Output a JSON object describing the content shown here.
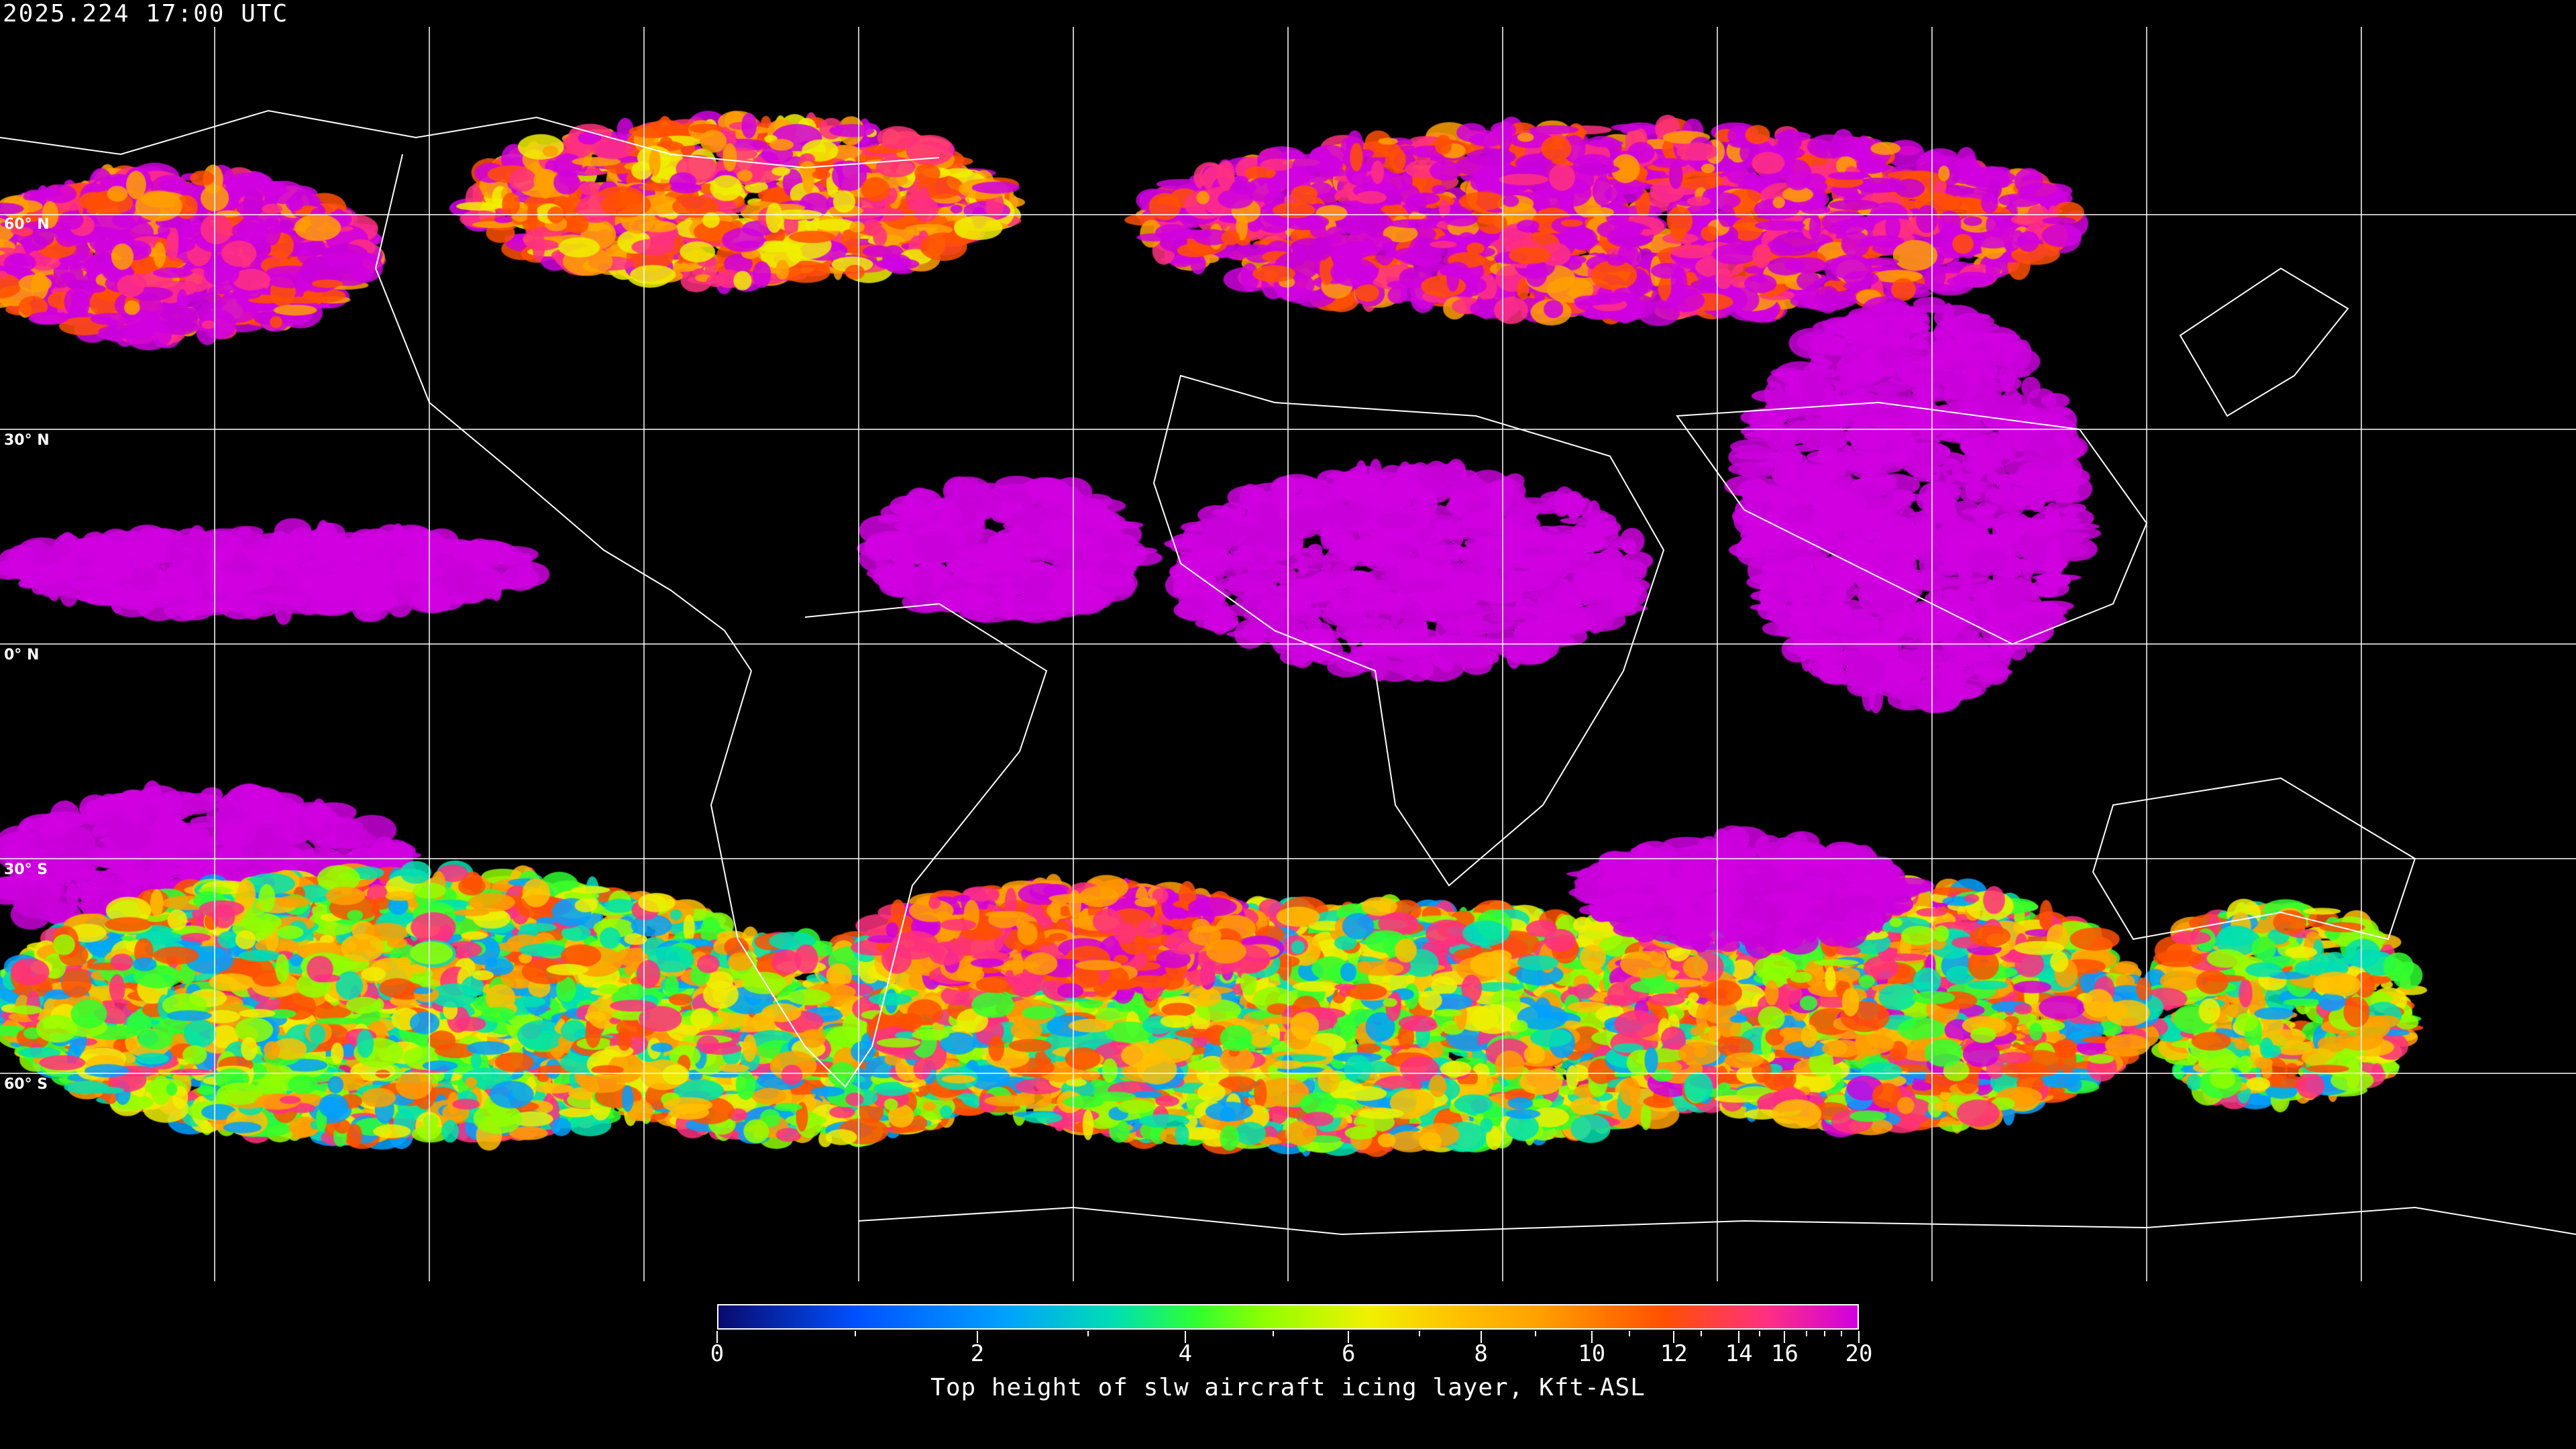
{
  "header": {
    "timestamp": "2025.224 17:00 UTC"
  },
  "map": {
    "projection": "equirectangular",
    "graticule_spacing_deg": 30,
    "latitude_labels": [
      "60° N",
      "30° N",
      "0° N",
      "30° S",
      "60° S"
    ],
    "background_color": "#000000",
    "coastline_color": "#ffffff",
    "gridline_color": "#ffffff"
  },
  "colorbar": {
    "title": "Top height of slw aircraft icing layer, Kft-ASL",
    "range": [
      0,
      20
    ],
    "major_ticks": [
      "0",
      "2",
      "4",
      "6",
      "8",
      "10",
      "12",
      "14",
      "16",
      "20"
    ],
    "minor_ticks": [
      1,
      3,
      5,
      7,
      9,
      11,
      13,
      15,
      17,
      18,
      19
    ],
    "colors": [
      "#0a0a6e",
      "#0050ff",
      "#00a0ff",
      "#00e0b0",
      "#30ff30",
      "#90ff00",
      "#f0f000",
      "#ffc000",
      "#ffa000",
      "#ff5000",
      "#ff3080",
      "#d000e0"
    ]
  }
}
